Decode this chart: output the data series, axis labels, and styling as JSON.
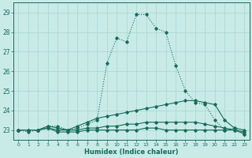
{
  "xlabel": "Humidex (Indice chaleur)",
  "x": [
    0,
    1,
    2,
    3,
    4,
    5,
    6,
    7,
    8,
    9,
    10,
    11,
    12,
    13,
    14,
    15,
    16,
    17,
    18,
    19,
    20,
    21,
    22,
    23
  ],
  "line1": [
    23.0,
    22.9,
    23.0,
    23.2,
    23.2,
    23.0,
    23.1,
    23.3,
    23.5,
    26.4,
    27.7,
    27.5,
    28.9,
    28.9,
    28.2,
    28.0,
    26.3,
    25.0,
    24.4,
    24.3,
    23.5,
    23.0,
    23.1,
    22.8
  ],
  "line2": [
    23.0,
    23.0,
    23.0,
    23.2,
    23.1,
    23.0,
    23.2,
    23.4,
    23.6,
    23.7,
    23.8,
    23.9,
    24.0,
    24.1,
    24.2,
    24.3,
    24.4,
    24.5,
    24.5,
    24.4,
    24.3,
    23.5,
    23.1,
    23.0
  ],
  "line3": [
    23.0,
    23.0,
    23.0,
    23.1,
    23.0,
    23.0,
    23.0,
    23.1,
    23.1,
    23.2,
    23.2,
    23.3,
    23.3,
    23.4,
    23.4,
    23.4,
    23.4,
    23.4,
    23.4,
    23.3,
    23.2,
    23.1,
    23.0,
    22.9
  ],
  "line4": [
    23.0,
    23.0,
    23.0,
    23.1,
    22.9,
    22.9,
    22.9,
    23.0,
    23.0,
    23.0,
    23.0,
    23.0,
    23.0,
    23.1,
    23.1,
    23.0,
    23.0,
    23.0,
    23.0,
    23.0,
    23.0,
    23.0,
    23.0,
    22.8
  ],
  "line_color": "#1a6b5a",
  "bg_color": "#c8ebe8",
  "grid_color": "#aad4cf",
  "ylim": [
    22.5,
    29.5
  ],
  "yticks": [
    23,
    24,
    25,
    26,
    27,
    28,
    29
  ],
  "marker": "D",
  "markersize": 1.8,
  "linewidth": 0.8
}
